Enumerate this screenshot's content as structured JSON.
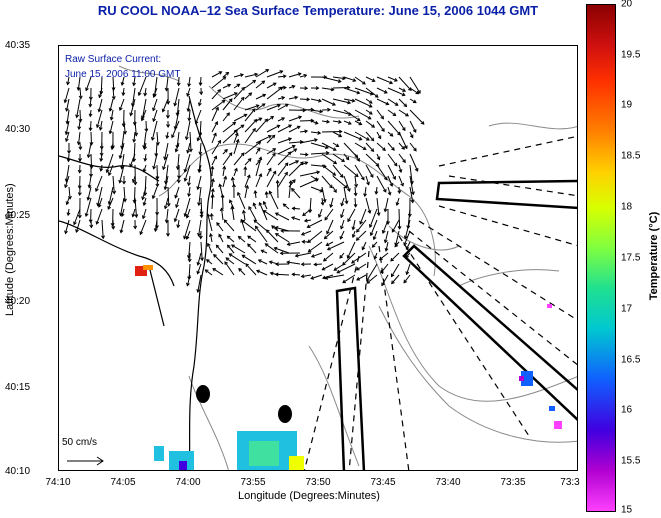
{
  "title": "RU COOL  NOAA–12  Sea Surface Temperature:  June 15, 2006 1044 GMT",
  "inset": {
    "line1": "Raw Surface Current:",
    "line2": "June 15, 2006 11:00 GMT"
  },
  "scale_label": "50 cm/s",
  "axes": {
    "xlabel": "Longitude (Degrees:Minutes)",
    "ylabel": "Latitude (Degrees:Minutes)",
    "xticks": [
      "74:10",
      "74:05",
      "74:00",
      "73:55",
      "73:50",
      "73:45",
      "73:40",
      "73:35",
      "73:3"
    ],
    "yticks": [
      "40:35",
      "40:30",
      "40:25",
      "40:20",
      "40:15",
      "40:10"
    ]
  },
  "colorbar": {
    "label": "Temperature (°C)",
    "ticks": [
      "20",
      "19.5",
      "19",
      "18.5",
      "18",
      "17.5",
      "17",
      "16.5",
      "16",
      "15.5",
      "15"
    ],
    "min": 15,
    "max": 20
  }
}
